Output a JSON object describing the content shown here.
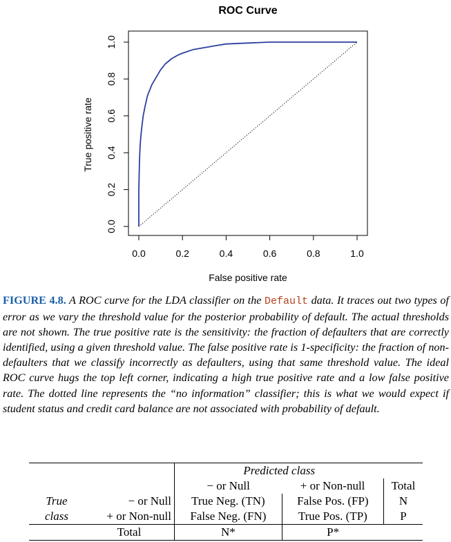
{
  "chart_data": {
    "type": "line",
    "title": "ROC Curve",
    "xlabel": "False positive rate",
    "ylabel": "True positive rate",
    "xlim": [
      0,
      1
    ],
    "ylim": [
      0,
      1
    ],
    "xticks": [
      "0.0",
      "0.2",
      "0.4",
      "0.6",
      "0.8",
      "1.0"
    ],
    "yticks": [
      "0.0",
      "0.2",
      "0.4",
      "0.6",
      "0.8",
      "1.0"
    ],
    "grid": false,
    "series": [
      {
        "color": "#2b3f9e",
        "x": [
          0.0,
          0.0,
          0.003,
          0.006,
          0.01,
          0.015,
          0.02,
          0.03,
          0.04,
          0.05,
          0.06,
          0.08,
          0.1,
          0.12,
          0.15,
          0.18,
          0.2,
          0.25,
          0.3,
          0.35,
          0.4,
          0.5,
          0.6,
          1.0
        ],
        "y": [
          0.0,
          0.2,
          0.35,
          0.44,
          0.5,
          0.55,
          0.6,
          0.66,
          0.71,
          0.74,
          0.77,
          0.81,
          0.85,
          0.88,
          0.91,
          0.93,
          0.94,
          0.96,
          0.97,
          0.98,
          0.99,
          0.995,
          1.0,
          1.0
        ]
      },
      {
        "style": "dotted",
        "color": "#000000",
        "x": [
          0,
          1
        ],
        "y": [
          0,
          1
        ]
      }
    ]
  },
  "caption": {
    "label": "FIGURE 4.8.",
    "text_before_code": " A ROC curve for the LDA classifier on the ",
    "code": "Default",
    "text_after_code": " data. It traces out two types of error as we vary the threshold value for the posterior probability of default. The actual thresholds are not shown. The true positive rate is the sensitivity: the fraction of defaulters that are correctly identified, using a given threshold value. The false positive rate is 1-specificity: the fraction of non-defaulters that we classify incorrectly as defaulters, using that same threshold value. The ideal ROC curve hugs the top left corner, indicating a high true positive rate and a low false positive rate. The dotted line represents the “no information” classifier; this is what we would expect if student status and credit card balance are not associated with probability of default."
  },
  "table": {
    "predicted_class": "Predicted class",
    "col_null": "− or Null",
    "col_nonnull": "+ or Non-null",
    "col_total": "Total",
    "true_label": "True",
    "class_label": "class",
    "row_null": "− or Null",
    "row_nonnull": "+ or Non-null",
    "tn": "True Neg. (TN)",
    "fp": "False Pos. (FP)",
    "n": "N",
    "fn": "False Neg. (FN)",
    "tp": "True Pos. (TP)",
    "p": "P",
    "total": "Total",
    "n_star": "N*",
    "p_star": "P*"
  }
}
